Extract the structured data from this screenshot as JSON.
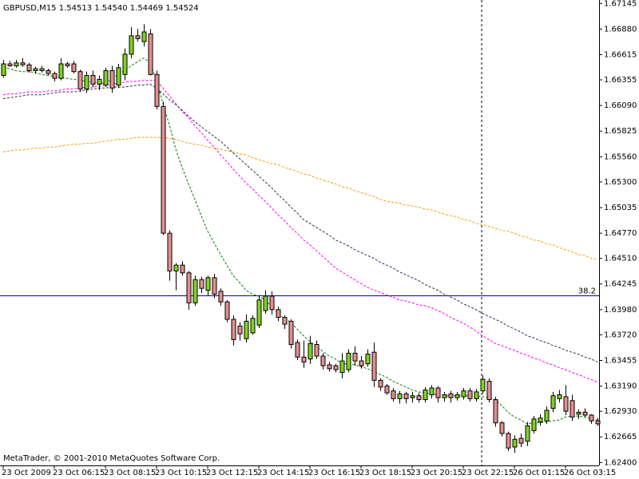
{
  "chart_data": {
    "type": "candlestick",
    "title": "GBPUSD,M15  1.54513 1.54540 1.54469 1.54524",
    "copyright": "MetaTrader, © 2001-2010 MetaQuotes Software Corp.",
    "categories": [
      "23 Oct 2009",
      null,
      null,
      null,
      null,
      null,
      null,
      null,
      "23 Oct 06:15",
      null,
      null,
      null,
      null,
      null,
      null,
      null,
      "23 Oct 08:15",
      null,
      null,
      null,
      null,
      null,
      null,
      null,
      "23 Oct 10:15",
      null,
      null,
      null,
      null,
      null,
      null,
      null,
      "23 Oct 12:15",
      null,
      null,
      null,
      null,
      null,
      null,
      null,
      "23 Oct 14:15",
      null,
      null,
      null,
      null,
      null,
      null,
      null,
      "23 Oct 16:15",
      null,
      null,
      null,
      null,
      null,
      null,
      null,
      "23 Oct 18:15",
      null,
      null,
      null,
      null,
      null,
      null,
      null,
      "23 Oct 20:15",
      null,
      null,
      null,
      null,
      null,
      null,
      null,
      "23 Oct 22:15",
      null,
      null,
      null,
      null,
      null,
      null,
      null,
      "26 Oct 01:15",
      null,
      null,
      null,
      null,
      null,
      null,
      null,
      "26 Oct 03:15",
      null,
      null,
      null,
      null,
      null
    ],
    "open": [
      1.664,
      1.6652,
      1.665,
      1.6653,
      1.6651,
      1.6645,
      1.6647,
      1.6645,
      1.6642,
      1.6637,
      1.6652,
      1.6652,
      1.6644,
      1.6626,
      1.664,
      1.6631,
      1.663,
      1.6645,
      1.663,
      1.6641,
      1.6662,
      1.6681,
      1.6675,
      1.6683,
      1.6641,
      1.6608,
      1.6477,
      1.6438,
      1.6444,
      1.6436,
      1.6405,
      1.6429,
      1.6418,
      1.6431,
      1.6417,
      1.6406,
      1.6388,
      1.6381,
      1.6368,
      1.6374,
      1.6382,
      1.6397,
      1.6412,
      1.6398,
      1.639,
      1.6386,
      1.6364,
      1.6349,
      1.6347,
      1.6362,
      1.635,
      1.6341,
      1.634,
      1.6333,
      1.6336,
      1.6353,
      1.6345,
      1.6342,
      1.6354,
      1.6325,
      1.6319,
      1.6314,
      1.6306,
      1.6311,
      1.6307,
      1.6309,
      1.6305,
      1.631,
      1.6317,
      1.6307,
      1.6311,
      1.6307,
      1.6308,
      1.6314,
      1.6306,
      1.6314,
      1.6324,
      1.6305,
      1.6281,
      1.627,
      1.6256,
      1.6265,
      1.6262,
      1.6273,
      1.6282,
      1.6283,
      1.6296,
      1.6306,
      1.6308,
      1.6304,
      1.629,
      1.6292,
      1.6289,
      1.6283
    ],
    "high": [
      1.6656,
      1.6655,
      1.6656,
      1.6658,
      1.6653,
      1.6649,
      1.665,
      1.6647,
      1.6644,
      1.6658,
      1.6654,
      1.6655,
      1.6646,
      1.6644,
      1.6645,
      1.664,
      1.6648,
      1.665,
      1.6652,
      1.6668,
      1.669,
      1.6688,
      1.6693,
      1.6688,
      1.6645,
      1.6613,
      1.648,
      1.6446,
      1.6448,
      1.6438,
      1.6433,
      1.6432,
      1.6433,
      1.6435,
      1.642,
      1.6408,
      1.6392,
      1.6385,
      1.6393,
      1.6392,
      1.6413,
      1.6418,
      1.6417,
      1.6401,
      1.6392,
      1.6388,
      1.6367,
      1.6366,
      1.6371,
      1.6366,
      1.6353,
      1.6344,
      1.6342,
      1.6353,
      1.6357,
      1.636,
      1.635,
      1.6357,
      1.6364,
      1.6327,
      1.6321,
      1.6317,
      1.6314,
      1.6313,
      1.6313,
      1.6312,
      1.6318,
      1.632,
      1.6319,
      1.6313,
      1.6314,
      1.6313,
      1.6317,
      1.6317,
      1.6316,
      1.633,
      1.6327,
      1.6308,
      1.6283,
      1.6272,
      1.6268,
      1.627,
      1.6282,
      1.6288,
      1.629,
      1.6298,
      1.6313,
      1.6315,
      1.632,
      1.631,
      1.6295,
      1.6296,
      1.629,
      1.6286
    ],
    "low": [
      1.6638,
      1.6649,
      1.6648,
      1.6649,
      1.6643,
      1.6642,
      1.6643,
      1.664,
      1.6634,
      1.6635,
      1.6648,
      1.6642,
      1.6623,
      1.6622,
      1.6628,
      1.6625,
      1.6628,
      1.6622,
      1.6627,
      1.6635,
      1.6658,
      1.6675,
      1.667,
      1.664,
      1.6605,
      1.6475,
      1.6428,
      1.6418,
      1.6433,
      1.6398,
      1.6402,
      1.6415,
      1.6412,
      1.641,
      1.6402,
      1.6385,
      1.6361,
      1.6366,
      1.6364,
      1.6372,
      1.6379,
      1.6394,
      1.6393,
      1.6386,
      1.6378,
      1.6358,
      1.6346,
      1.6338,
      1.6342,
      1.6347,
      1.6336,
      1.6334,
      1.6333,
      1.6327,
      1.6333,
      1.634,
      1.6337,
      1.6339,
      1.6318,
      1.6314,
      1.631,
      1.6303,
      1.6301,
      1.6301,
      1.6302,
      1.6302,
      1.6302,
      1.6306,
      1.6302,
      1.6303,
      1.6302,
      1.6304,
      1.6305,
      1.6303,
      1.6303,
      1.6311,
      1.6302,
      1.6277,
      1.6267,
      1.6252,
      1.625,
      1.6256,
      1.6257,
      1.627,
      1.6278,
      1.628,
      1.6292,
      1.6302,
      1.6289,
      1.6283,
      1.6285,
      1.6287,
      1.628,
      1.6278
    ],
    "close": [
      1.6652,
      1.665,
      1.6653,
      1.6651,
      1.6645,
      1.6647,
      1.6645,
      1.6642,
      1.6637,
      1.6652,
      1.665,
      1.6644,
      1.6626,
      1.664,
      1.6631,
      1.6636,
      1.6645,
      1.6627,
      1.6648,
      1.6662,
      1.6681,
      1.6678,
      1.6685,
      1.6641,
      1.6608,
      1.6477,
      1.6438,
      1.6444,
      1.6436,
      1.6405,
      1.6429,
      1.642,
      1.6431,
      1.6414,
      1.6406,
      1.6388,
      1.6367,
      1.6373,
      1.6386,
      1.6389,
      1.6408,
      1.6412,
      1.6398,
      1.639,
      1.6383,
      1.6362,
      1.6349,
      1.6344,
      1.6363,
      1.635,
      1.634,
      1.6337,
      1.6336,
      1.6345,
      1.6353,
      1.6345,
      1.634,
      1.6352,
      1.6325,
      1.6318,
      1.6312,
      1.6306,
      1.6311,
      1.6306,
      1.6309,
      1.6305,
      1.6315,
      1.6317,
      1.6307,
      1.631,
      1.6307,
      1.631,
      1.6314,
      1.6306,
      1.6313,
      1.6326,
      1.6305,
      1.6281,
      1.627,
      1.6255,
      1.6264,
      1.626,
      1.6278,
      1.6285,
      1.6286,
      1.6294,
      1.6309,
      1.631,
      1.6293,
      1.6287,
      1.6292,
      1.6289,
      1.6283,
      1.628
    ],
    "up_color": "#7fd31f",
    "down_color": "#e58f8f",
    "lines": [
      {
        "color": "#008000",
        "values": [
          1.6648,
          1.6647,
          1.6645,
          1.6644,
          1.6644,
          1.6643,
          1.6641,
          1.664,
          1.6639,
          1.6638,
          1.6637,
          1.6636,
          1.6635,
          1.6634,
          1.6633,
          1.6632,
          1.6632,
          1.6636,
          1.6641,
          1.6645,
          1.665,
          1.6654,
          1.6658,
          1.6653,
          1.6635,
          1.6611,
          1.6589,
          1.6564,
          1.6545,
          1.6528,
          1.6512,
          1.6495,
          1.6479,
          1.6467,
          1.6455,
          1.6444,
          1.6433,
          1.6426,
          1.6418,
          1.6414,
          1.6412,
          1.6408,
          1.6401,
          1.6394,
          1.6389,
          1.6385,
          1.6378,
          1.6371,
          1.6365,
          1.636,
          1.6355,
          1.635,
          1.6347,
          1.6342,
          1.6342,
          1.6341,
          1.6339,
          1.6337,
          1.6334,
          1.6331,
          1.6328,
          1.6324,
          1.6321,
          1.6318,
          1.6315,
          1.6313,
          1.6312,
          1.6311,
          1.631,
          1.6309,
          1.6309,
          1.6309,
          1.6309,
          1.6309,
          1.6309,
          1.6308,
          1.6307,
          1.6305,
          1.6299,
          1.6292,
          1.6287,
          1.6284,
          1.628,
          1.6281,
          1.6281,
          1.6282,
          1.6283,
          1.6284,
          1.6287,
          1.6288,
          1.6288,
          1.6287,
          1.6285,
          1.6284
        ]
      },
      {
        "color": "#ff00ff",
        "values": [
          1.662,
          1.6621,
          1.6621,
          1.6622,
          1.6623,
          1.6623,
          1.6623,
          1.6624,
          1.6624,
          1.6625,
          1.6626,
          1.6626,
          1.6627,
          1.6628,
          1.6628,
          1.6629,
          1.663,
          1.6631,
          1.6632,
          1.6633,
          1.6634,
          1.6634,
          1.6635,
          1.6635,
          1.6635,
          1.6627,
          1.6619,
          1.6611,
          1.6603,
          1.6596,
          1.6588,
          1.6581,
          1.6573,
          1.6566,
          1.6558,
          1.6551,
          1.6543,
          1.6536,
          1.6529,
          1.6523,
          1.6516,
          1.651,
          1.6503,
          1.6496,
          1.649,
          1.6483,
          1.6477,
          1.647,
          1.6465,
          1.6459,
          1.6453,
          1.6447,
          1.6441,
          1.6437,
          1.6433,
          1.6429,
          1.6425,
          1.6421,
          1.6418,
          1.6416,
          1.6413,
          1.6411,
          1.6408,
          1.6407,
          1.6405,
          1.6403,
          1.6402,
          1.64,
          1.6397,
          1.6394,
          1.639,
          1.6387,
          1.6384,
          1.638,
          1.6376,
          1.6371,
          1.6367,
          1.6363,
          1.6361,
          1.6358,
          1.6356,
          1.6353,
          1.6351,
          1.6348,
          1.6346,
          1.6343,
          1.6341,
          1.6338,
          1.6336,
          1.6333,
          1.6331,
          1.6328,
          1.6326,
          1.6323
        ]
      },
      {
        "color": "#2f2f4f",
        "values": [
          1.6616,
          1.6617,
          1.6618,
          1.6619,
          1.662,
          1.662,
          1.662,
          1.6621,
          1.6622,
          1.6623,
          1.6623,
          1.6623,
          1.6624,
          1.6625,
          1.6626,
          1.6627,
          1.6627,
          1.6628,
          1.6628,
          1.6628,
          1.6629,
          1.663,
          1.663,
          1.6631,
          1.6627,
          1.6621,
          1.6615,
          1.661,
          1.6604,
          1.6598,
          1.6592,
          1.6587,
          1.6582,
          1.6577,
          1.6572,
          1.6566,
          1.656,
          1.6554,
          1.6548,
          1.6542,
          1.6536,
          1.653,
          1.6524,
          1.6517,
          1.6511,
          1.6504,
          1.6498,
          1.6491,
          1.6487,
          1.6483,
          1.6479,
          1.6475,
          1.647,
          1.6467,
          1.6464,
          1.646,
          1.6457,
          1.6454,
          1.6451,
          1.6447,
          1.6444,
          1.6441,
          1.6437,
          1.6434,
          1.6431,
          1.6428,
          1.6424,
          1.6421,
          1.6418,
          1.6414,
          1.6411,
          1.6408,
          1.6404,
          1.6401,
          1.6398,
          1.6394,
          1.6391,
          1.6388,
          1.6385,
          1.6381,
          1.6378,
          1.6375,
          1.6371,
          1.6369,
          1.6366,
          1.6364,
          1.6361,
          1.6359,
          1.6356,
          1.6354,
          1.6352,
          1.6349,
          1.6347,
          1.6344
        ]
      },
      {
        "color": "#ff9900",
        "values": [
          1.6561,
          1.6562,
          1.6563,
          1.6563,
          1.6564,
          1.6565,
          1.6565,
          1.6566,
          1.6566,
          1.6567,
          1.6568,
          1.6569,
          1.6569,
          1.657,
          1.657,
          1.6571,
          1.6572,
          1.6573,
          1.6574,
          1.6574,
          1.6575,
          1.6576,
          1.6576,
          1.6576,
          1.6576,
          1.6576,
          1.6575,
          1.6574,
          1.6572,
          1.657,
          1.6569,
          1.6568,
          1.6566,
          1.6565,
          1.6564,
          1.6562,
          1.6561,
          1.6559,
          1.6558,
          1.6555,
          1.6553,
          1.6551,
          1.6549,
          1.6548,
          1.6545,
          1.6543,
          1.6541,
          1.6538,
          1.6537,
          1.6534,
          1.6532,
          1.653,
          1.6528,
          1.6525,
          1.6524,
          1.6521,
          1.6519,
          1.6517,
          1.6515,
          1.6512,
          1.651,
          1.6509,
          1.6508,
          1.6506,
          1.6505,
          1.6504,
          1.6502,
          1.6501,
          1.6499,
          1.6497,
          1.6495,
          1.6494,
          1.6491,
          1.649,
          1.6487,
          1.6486,
          1.6484,
          1.6482,
          1.648,
          1.6479,
          1.6477,
          1.6474,
          1.6473,
          1.647,
          1.6469,
          1.6466,
          1.6465,
          1.6462,
          1.646,
          1.6458,
          1.6455,
          1.6454,
          1.6451,
          1.645
        ]
      }
    ],
    "hline": {
      "value": 1.6413,
      "label": "38.2",
      "color": "#0000cc"
    },
    "ylim": [
      1.6237,
      1.6718
    ],
    "yticks": [
      1.67145,
      {
        "value": 1.6688,
        "label": "1.66880"
      },
      1.66615,
      1.66355,
      {
        "value": 1.6609,
        "label": "1.66090"
      },
      1.65825,
      {
        "value": 1.6556,
        "label": "1.65560"
      },
      {
        "value": 1.653,
        "label": "1.65300"
      },
      1.65035,
      {
        "value": 1.6477,
        "label": "1.64770"
      },
      {
        "value": 1.6451,
        "label": "1.64510"
      },
      1.64245,
      {
        "value": 1.6398,
        "label": "1.63980"
      },
      {
        "value": 1.6372,
        "label": "1.63720"
      },
      1.63455,
      {
        "value": 1.6319,
        "label": "1.63190"
      },
      {
        "value": 1.6293,
        "label": "1.62930"
      },
      1.62665,
      {
        "value": 1.624,
        "label": "1.62400"
      }
    ]
  }
}
